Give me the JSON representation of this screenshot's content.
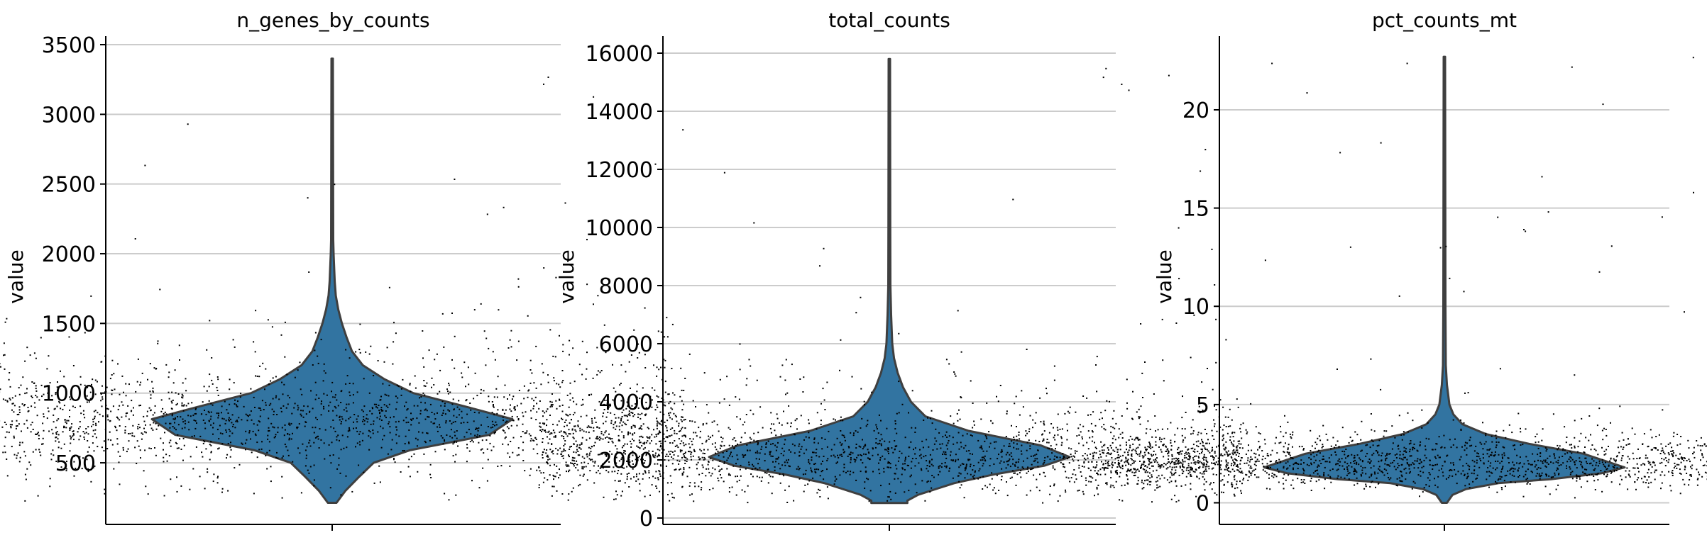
{
  "chart_data": [
    {
      "type": "violin",
      "title": "n_genes_by_counts",
      "ylabel": "value",
      "ylim": [
        58,
        3561
      ],
      "yticks": [
        500,
        1000,
        1500,
        2000,
        2500,
        3000,
        3500
      ],
      "ytick_labels": [
        "500",
        "1000",
        "1500",
        "2000",
        "2500",
        "3000",
        "3500"
      ],
      "grid": true,
      "data_range": [
        213,
        3400
      ],
      "density_profile": [
        [
          213,
          0.024
        ],
        [
          300,
          0.074
        ],
        [
          400,
          0.15
        ],
        [
          500,
          0.23
        ],
        [
          590,
          0.43
        ],
        [
          700,
          0.87
        ],
        [
          813,
          1.0
        ],
        [
          900,
          0.75
        ],
        [
          1000,
          0.45
        ],
        [
          1100,
          0.29
        ],
        [
          1200,
          0.17
        ],
        [
          1300,
          0.11
        ],
        [
          1400,
          0.08
        ],
        [
          1500,
          0.054
        ],
        [
          1600,
          0.034
        ],
        [
          1700,
          0.02
        ],
        [
          1800,
          0.014
        ],
        [
          2000,
          0.008
        ],
        [
          2100,
          0.006
        ],
        [
          3400,
          0.004
        ]
      ]
    },
    {
      "type": "violin",
      "title": "total_counts",
      "ylabel": "value",
      "ylim": [
        -220,
        16585
      ],
      "yticks": [
        0,
        2000,
        4000,
        6000,
        8000,
        10000,
        12000,
        14000,
        16000
      ],
      "ytick_labels": [
        "0",
        "2000",
        "4000",
        "6000",
        "8000",
        "10000",
        "12000",
        "14000",
        "16000"
      ],
      "grid": true,
      "data_range": [
        520,
        15800
      ],
      "density_profile": [
        [
          520,
          0.1
        ],
        [
          600,
          0.1
        ],
        [
          800,
          0.16
        ],
        [
          1000,
          0.26
        ],
        [
          1200,
          0.36
        ],
        [
          1500,
          0.58
        ],
        [
          1800,
          0.86
        ],
        [
          2100,
          1.0
        ],
        [
          2500,
          0.84
        ],
        [
          3000,
          0.44
        ],
        [
          3500,
          0.2
        ],
        [
          4000,
          0.12
        ],
        [
          4500,
          0.076
        ],
        [
          5000,
          0.046
        ],
        [
          5500,
          0.026
        ],
        [
          6000,
          0.016
        ],
        [
          7000,
          0.01
        ],
        [
          8000,
          0.006
        ],
        [
          10000,
          0.005
        ],
        [
          15800,
          0.004
        ]
      ]
    },
    {
      "type": "violin",
      "title": "pct_counts_mt",
      "ylabel": "value",
      "ylim": [
        -1.1,
        23.75
      ],
      "yticks": [
        0,
        5,
        10,
        15,
        20
      ],
      "ytick_labels": [
        "0",
        "5",
        "10",
        "15",
        "20"
      ],
      "grid": true,
      "data_range": [
        0,
        22.7
      ],
      "density_profile": [
        [
          0,
          0.014
        ],
        [
          0.4,
          0.045
        ],
        [
          0.7,
          0.12
        ],
        [
          1,
          0.3
        ],
        [
          1.2,
          0.59
        ],
        [
          1.5,
          0.87
        ],
        [
          1.8,
          1.0
        ],
        [
          2.5,
          0.77
        ],
        [
          3,
          0.47
        ],
        [
          3.5,
          0.23
        ],
        [
          4,
          0.1
        ],
        [
          4.5,
          0.05
        ],
        [
          5,
          0.028
        ],
        [
          6,
          0.014
        ],
        [
          7,
          0.008
        ],
        [
          10,
          0.006
        ],
        [
          22.7,
          0.004
        ]
      ]
    }
  ],
  "colors": {
    "violin_fill": "#3274a1",
    "violin_edge": "#3f3f3f",
    "points": "#000000",
    "grid": "#cccccc"
  }
}
